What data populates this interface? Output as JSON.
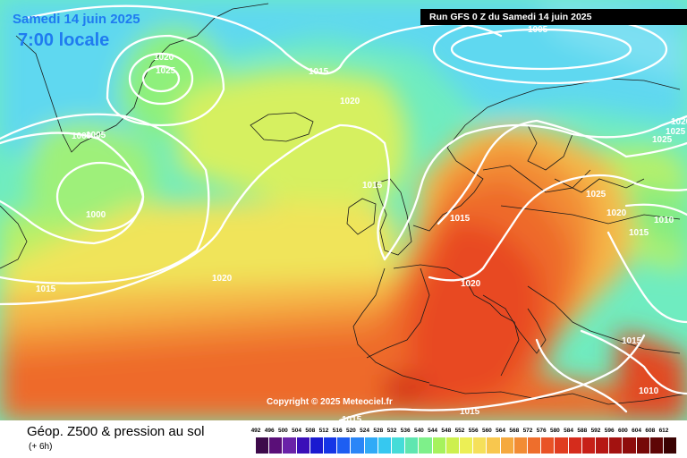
{
  "header": {
    "date": "Samedi 14 juin 2025",
    "time": "7:00 locale",
    "run": "Run GFS 0 Z du Samedi 14 juin 2025"
  },
  "footer": {
    "copyright": "Copyright © 2025 Meteociel.fr",
    "title": "Géop. Z500 & pression au sol",
    "lead": "(+ 6h)"
  },
  "pressure_labels": [
    "1005",
    "1020",
    "1025",
    "1015",
    "1020",
    "1000",
    "1000",
    "1015",
    "1015",
    "1020",
    "1020",
    "1015",
    "1025",
    "1020",
    "1010",
    "1015",
    "1015",
    "1010",
    "1015",
    "1015",
    "1005",
    "1025",
    "1025",
    "1020"
  ],
  "legend": {
    "values": [
      "492",
      "496",
      "500",
      "504",
      "508",
      "512",
      "516",
      "520",
      "524",
      "528",
      "532",
      "536",
      "540",
      "544",
      "548",
      "552",
      "556",
      "560",
      "564",
      "568",
      "572",
      "576",
      "580",
      "584",
      "588",
      "592",
      "596",
      "600",
      "604",
      "608",
      "612"
    ],
    "colors": [
      "#3d0a4a",
      "#5a0f78",
      "#6a22a8",
      "#3a0fb8",
      "#1a1ad0",
      "#1535e6",
      "#1d5ef2",
      "#2a86f7",
      "#30aaf7",
      "#36c8f0",
      "#45dcd8",
      "#5fe6b0",
      "#7ef08a",
      "#a6f25d",
      "#cdf04e",
      "#ecef55",
      "#f5e05a",
      "#f8c74e",
      "#f5a93f",
      "#f28c34",
      "#ee6e2c",
      "#e95326",
      "#e03d20",
      "#d52c1c",
      "#c72018",
      "#b61814",
      "#a31210",
      "#8e0d0c",
      "#760908",
      "#5e0606",
      "#3a0303"
    ]
  }
}
